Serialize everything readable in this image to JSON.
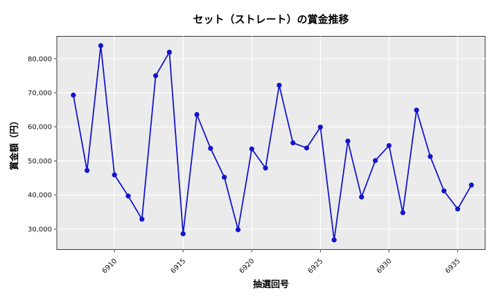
{
  "title": "セット（ストレート）の賞金推移",
  "chart_data": {
    "type": "line",
    "title": "セット（ストレート）の賞金推移",
    "xlabel": "抽選回号",
    "ylabel": "賞金額（円）",
    "series_name": "セット（ストレート）賞金",
    "x": [
      6907,
      6908,
      6909,
      6910,
      6911,
      6912,
      6913,
      6914,
      6915,
      6916,
      6917,
      6918,
      6919,
      6920,
      6921,
      6922,
      6923,
      6924,
      6925,
      6926,
      6927,
      6928,
      6929,
      6930,
      6931,
      6932,
      6933,
      6934,
      6935,
      6936
    ],
    "values": [
      69300,
      47200,
      83800,
      45900,
      39700,
      32900,
      75000,
      81900,
      28600,
      63600,
      53700,
      45200,
      29800,
      53500,
      47900,
      72200,
      55300,
      53800,
      59900,
      26800,
      55800,
      39400,
      50100,
      54500,
      34800,
      64900,
      51300,
      41200,
      35900,
      42900
    ],
    "xticks": [
      6910,
      6915,
      6920,
      6925,
      6930,
      6935
    ],
    "yticks": [
      30000,
      40000,
      50000,
      60000,
      70000,
      80000
    ],
    "ytick_labels": [
      "30,000",
      "40,000",
      "50,000",
      "60,000",
      "70,000",
      "80,000"
    ],
    "xlim": [
      6905.8,
      6937.0
    ],
    "ylim": [
      24000,
      86550
    ],
    "grid": true,
    "legend": "none",
    "line_color": "#1414cc",
    "marker_color": "#1414cc",
    "plot_bg_color": "#ebebeb",
    "grid_color": "#ffffff",
    "spine_color": "#333333"
  }
}
